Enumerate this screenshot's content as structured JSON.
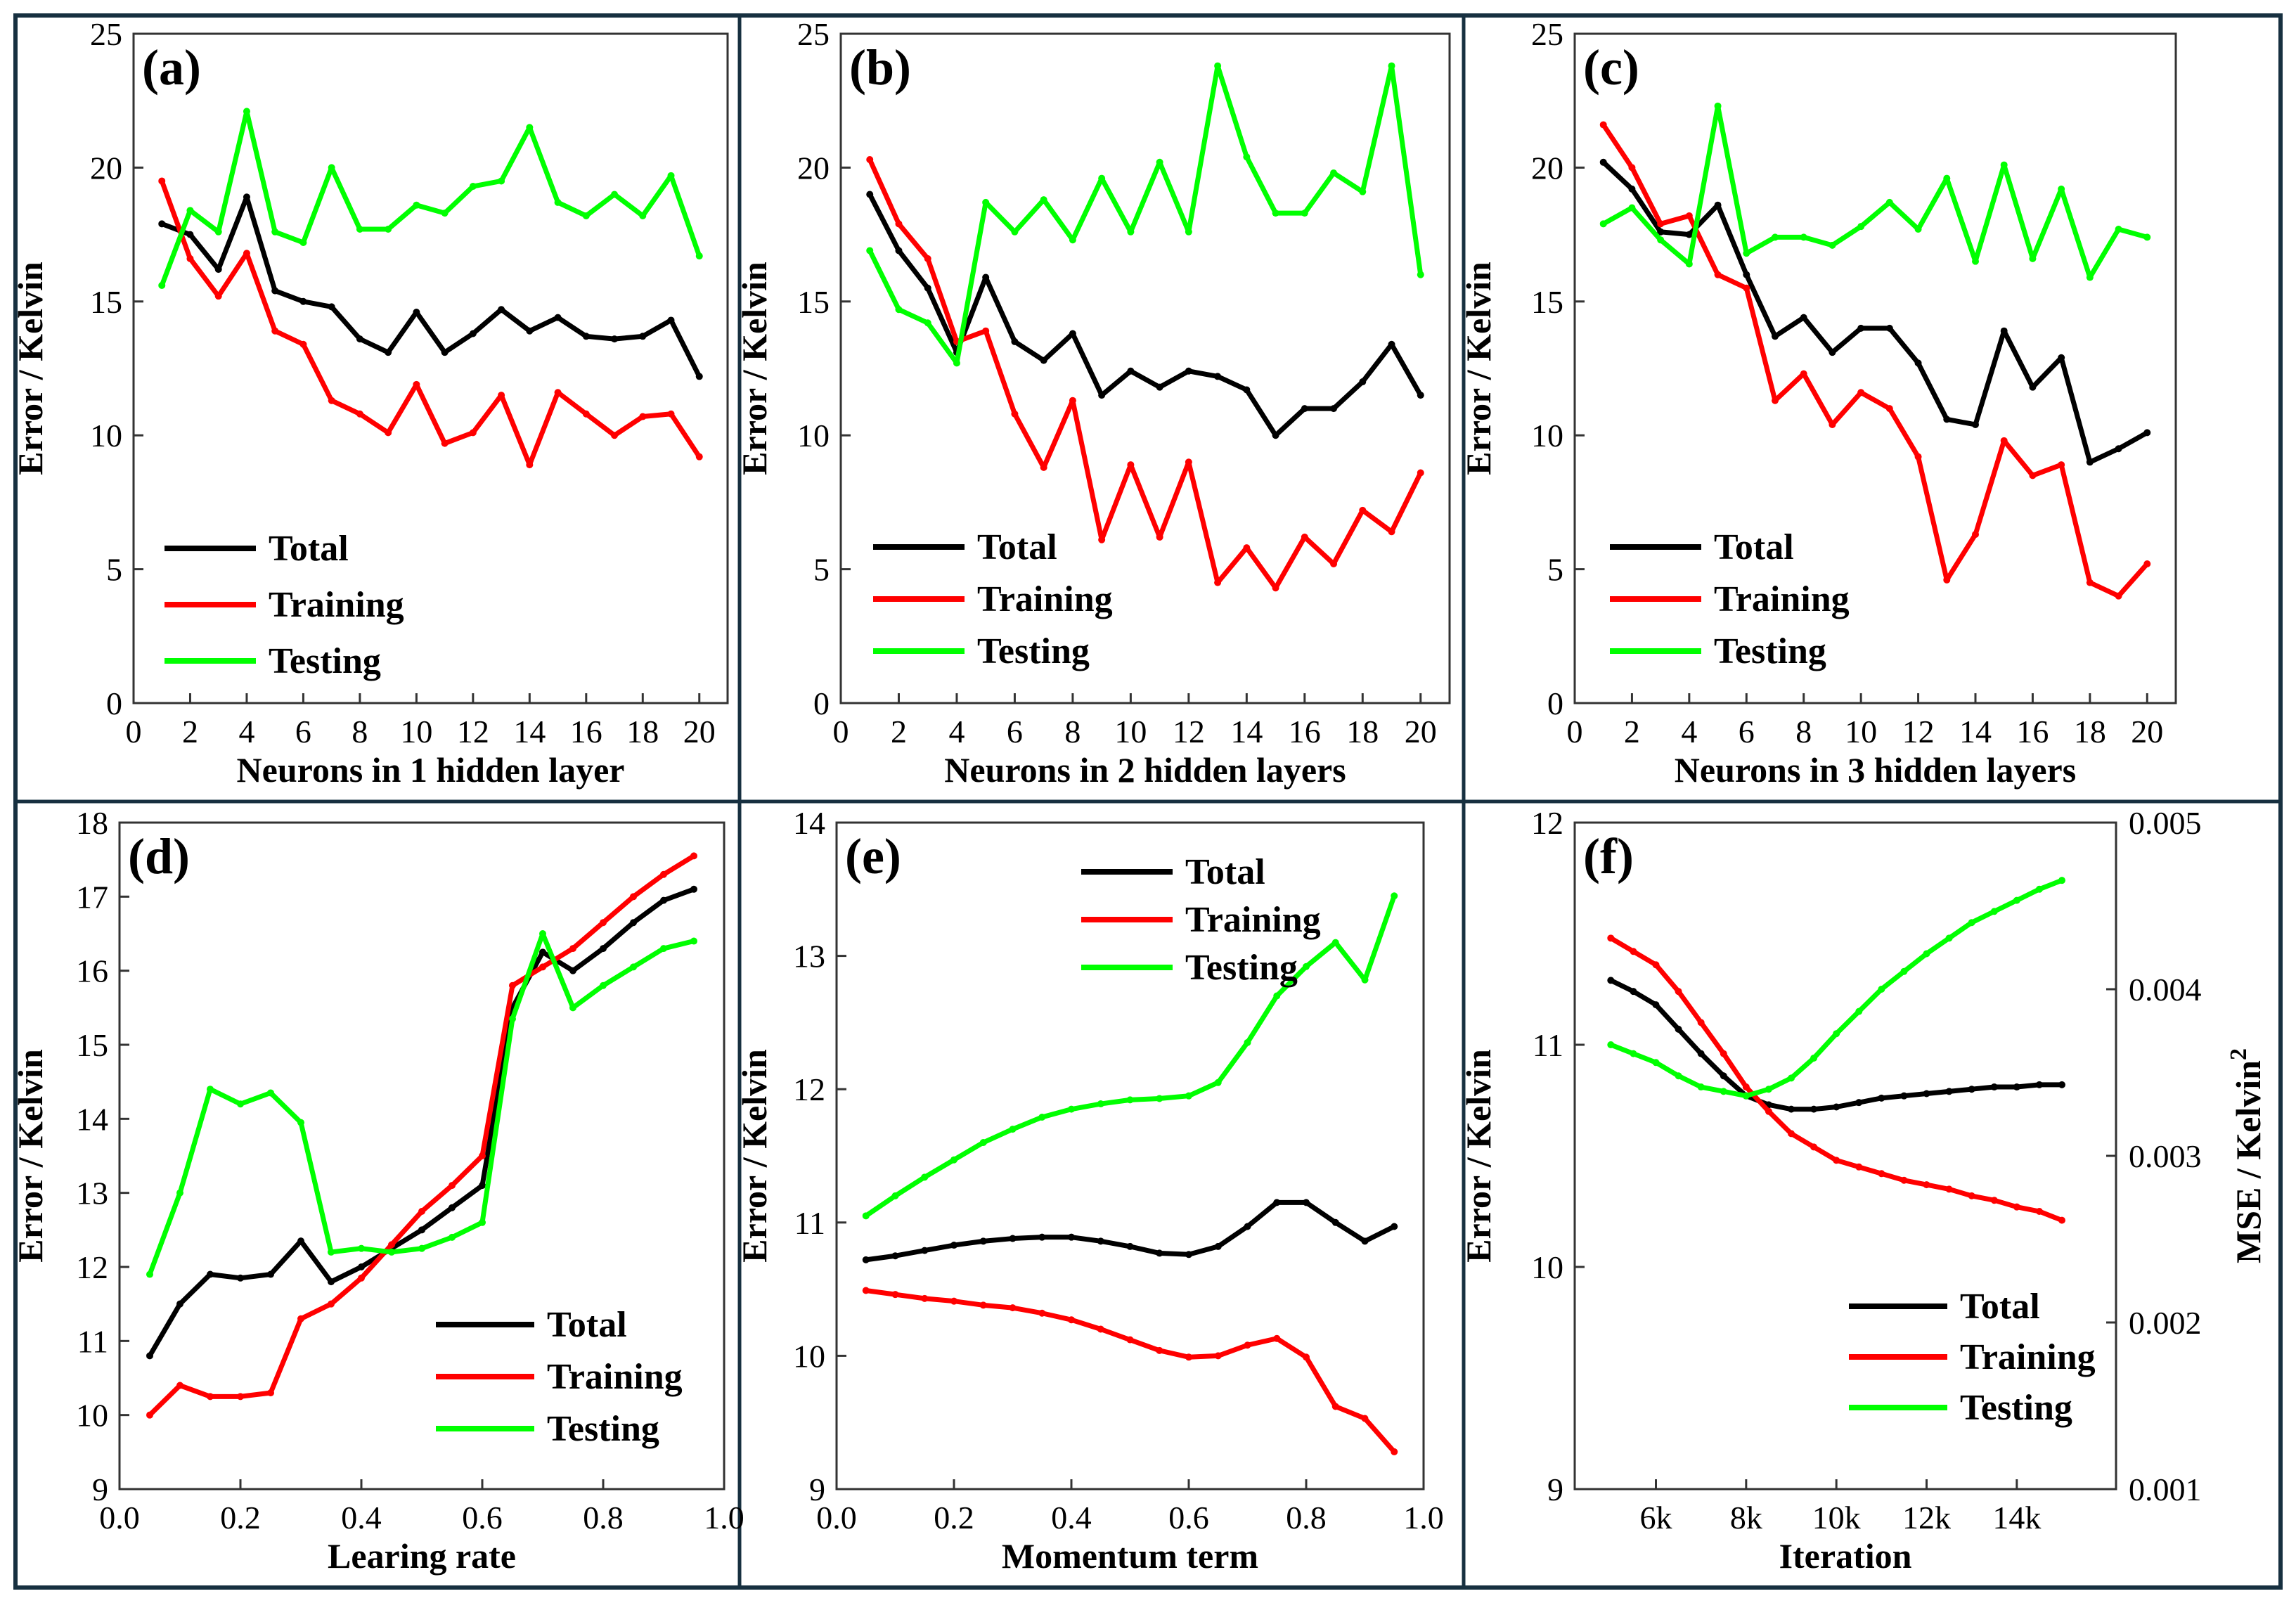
{
  "chart_data": [
    {
      "id": "a",
      "type": "line",
      "panel_label": "(a)",
      "xlabel": "Neurons in 1 hidden layer",
      "ylabel": "Error / Kelvin",
      "xlim": [
        0,
        21
      ],
      "ylim": [
        0,
        25
      ],
      "xticks": [
        0,
        2,
        4,
        6,
        8,
        10,
        12,
        14,
        16,
        18,
        20
      ],
      "xtick_labels": [
        "0",
        "2",
        "4",
        "6",
        "8",
        "10",
        "12",
        "14",
        "16",
        "18",
        "20"
      ],
      "yticks": [
        0,
        5,
        10,
        15,
        20,
        25
      ],
      "ytick_labels": [
        "0",
        "5",
        "10",
        "15",
        "20",
        "25"
      ],
      "legend_position": "bottom-left",
      "x": [
        1,
        2,
        3,
        4,
        5,
        6,
        7,
        8,
        9,
        10,
        11,
        12,
        13,
        14,
        15,
        16,
        17,
        18,
        19,
        20
      ],
      "series": [
        {
          "name": "Total",
          "color": "#000000",
          "values": [
            17.9,
            17.5,
            16.2,
            18.9,
            15.4,
            15.0,
            14.8,
            13.6,
            13.1,
            14.6,
            13.1,
            13.8,
            14.7,
            13.9,
            14.4,
            13.7,
            13.6,
            13.7,
            14.3,
            12.2
          ]
        },
        {
          "name": "Training",
          "color": "#ff0000",
          "values": [
            19.5,
            16.6,
            15.2,
            16.8,
            13.9,
            13.4,
            11.3,
            10.8,
            10.1,
            11.9,
            9.7,
            10.1,
            11.5,
            8.9,
            11.6,
            10.8,
            10.0,
            10.7,
            10.8,
            9.2
          ]
        },
        {
          "name": "Testing",
          "color": "#00ff00",
          "values": [
            15.6,
            18.4,
            17.6,
            22.1,
            17.6,
            17.2,
            20.0,
            17.7,
            17.7,
            18.6,
            18.3,
            19.3,
            19.5,
            21.5,
            18.7,
            18.2,
            19.0,
            18.2,
            19.7,
            16.7
          ]
        }
      ]
    },
    {
      "id": "b",
      "type": "line",
      "panel_label": "(b)",
      "xlabel": "Neurons in 2 hidden layers",
      "ylabel": "Error / Kelvin",
      "xlim": [
        0,
        21
      ],
      "ylim": [
        0,
        25
      ],
      "xticks": [
        0,
        2,
        4,
        6,
        8,
        10,
        12,
        14,
        16,
        18,
        20
      ],
      "xtick_labels": [
        "0",
        "2",
        "4",
        "6",
        "8",
        "10",
        "12",
        "14",
        "16",
        "18",
        "20"
      ],
      "yticks": [
        0,
        5,
        10,
        15,
        20,
        25
      ],
      "ytick_labels": [
        "0",
        "5",
        "10",
        "15",
        "20",
        "25"
      ],
      "legend_position": "bottom-left",
      "x": [
        1,
        2,
        3,
        4,
        5,
        6,
        7,
        8,
        9,
        10,
        11,
        12,
        13,
        14,
        15,
        16,
        17,
        18,
        19,
        20
      ],
      "series": [
        {
          "name": "Total",
          "color": "#000000",
          "values": [
            19.0,
            16.9,
            15.5,
            13.1,
            15.9,
            13.5,
            12.8,
            13.8,
            11.5,
            12.4,
            11.8,
            12.4,
            12.2,
            11.7,
            10.0,
            11.0,
            11.0,
            12.0,
            13.4,
            11.5
          ]
        },
        {
          "name": "Training",
          "color": "#ff0000",
          "values": [
            20.3,
            17.9,
            16.6,
            13.5,
            13.9,
            10.8,
            8.8,
            11.3,
            6.1,
            8.9,
            6.2,
            9.0,
            4.5,
            5.8,
            4.3,
            6.2,
            5.2,
            7.2,
            6.4,
            8.6
          ]
        },
        {
          "name": "Testing",
          "color": "#00ff00",
          "values": [
            16.9,
            14.7,
            14.2,
            12.7,
            18.7,
            17.6,
            18.8,
            17.3,
            19.6,
            17.6,
            20.2,
            17.6,
            23.8,
            20.4,
            18.3,
            18.3,
            19.8,
            19.1,
            23.8,
            16.0
          ]
        }
      ]
    },
    {
      "id": "c",
      "type": "line",
      "panel_label": "(c)",
      "xlabel": "Neurons in 3 hidden layers",
      "ylabel": "Error / Kelvin",
      "xlim": [
        0,
        21
      ],
      "ylim": [
        0,
        25
      ],
      "xticks": [
        0,
        2,
        4,
        6,
        8,
        10,
        12,
        14,
        16,
        18,
        20
      ],
      "xtick_labels": [
        "0",
        "2",
        "4",
        "6",
        "8",
        "10",
        "12",
        "14",
        "16",
        "18",
        "20"
      ],
      "yticks": [
        0,
        5,
        10,
        15,
        20,
        25
      ],
      "ytick_labels": [
        "0",
        "5",
        "10",
        "15",
        "20",
        "25"
      ],
      "legend_position": "bottom-left",
      "x": [
        1,
        2,
        3,
        4,
        5,
        6,
        7,
        8,
        9,
        10,
        11,
        12,
        13,
        14,
        15,
        16,
        17,
        18,
        19,
        20
      ],
      "series": [
        {
          "name": "Total",
          "color": "#000000",
          "values": [
            20.2,
            19.2,
            17.6,
            17.5,
            18.6,
            16.0,
            13.7,
            14.4,
            13.1,
            14.0,
            14.0,
            12.7,
            10.6,
            10.4,
            13.9,
            11.8,
            12.9,
            9.0,
            9.5,
            10.1
          ]
        },
        {
          "name": "Training",
          "color": "#ff0000",
          "values": [
            21.6,
            20.0,
            17.9,
            18.2,
            16.0,
            15.5,
            11.3,
            12.3,
            10.4,
            11.6,
            11.0,
            9.2,
            4.6,
            6.3,
            9.8,
            8.5,
            8.9,
            4.5,
            4.0,
            5.2
          ]
        },
        {
          "name": "Testing",
          "color": "#00ff00",
          "values": [
            17.9,
            18.5,
            17.3,
            16.4,
            22.3,
            16.8,
            17.4,
            17.4,
            17.1,
            17.8,
            18.7,
            17.7,
            19.6,
            16.5,
            20.1,
            16.6,
            19.2,
            15.9,
            17.7,
            17.4
          ]
        }
      ]
    },
    {
      "id": "d",
      "type": "line",
      "panel_label": "(d)",
      "xlabel": "Learing rate",
      "ylabel": "Error / Kelvin",
      "xlim": [
        0.0,
        1.0
      ],
      "ylim": [
        9,
        18
      ],
      "xticks": [
        0.0,
        0.2,
        0.4,
        0.6,
        0.8,
        1.0
      ],
      "xtick_labels": [
        "0.0",
        "0.2",
        "0.4",
        "0.6",
        "0.8",
        "1.0"
      ],
      "yticks": [
        9,
        10,
        11,
        12,
        13,
        14,
        15,
        16,
        17,
        18
      ],
      "ytick_labels": [
        "9",
        "10",
        "11",
        "12",
        "13",
        "14",
        "15",
        "16",
        "17",
        "18"
      ],
      "legend_position": "bottom-right",
      "x": [
        0.05,
        0.1,
        0.15,
        0.2,
        0.25,
        0.3,
        0.35,
        0.4,
        0.45,
        0.5,
        0.55,
        0.6,
        0.65,
        0.7,
        0.75,
        0.8,
        0.85,
        0.9,
        0.95
      ],
      "series": [
        {
          "name": "Total",
          "color": "#000000",
          "values": [
            10.8,
            11.5,
            11.9,
            11.85,
            11.9,
            12.35,
            11.8,
            12.0,
            12.25,
            12.5,
            12.8,
            13.1,
            15.5,
            16.25,
            16.0,
            16.3,
            16.65,
            16.95,
            17.1
          ]
        },
        {
          "name": "Training",
          "color": "#ff0000",
          "values": [
            10.0,
            10.4,
            10.25,
            10.25,
            10.3,
            11.3,
            11.5,
            11.85,
            12.3,
            12.75,
            13.1,
            13.5,
            15.8,
            16.05,
            16.3,
            16.65,
            17.0,
            17.3,
            17.55
          ]
        },
        {
          "name": "Testing",
          "color": "#00ff00",
          "values": [
            11.9,
            13.0,
            14.4,
            14.2,
            14.35,
            13.95,
            12.2,
            12.25,
            12.2,
            12.25,
            12.4,
            12.6,
            15.35,
            16.5,
            15.5,
            15.8,
            16.05,
            16.3,
            16.4
          ]
        }
      ]
    },
    {
      "id": "e",
      "type": "line",
      "panel_label": "(e)",
      "xlabel": "Momentum term",
      "ylabel": "Error / Kelvin",
      "xlim": [
        0.0,
        1.0
      ],
      "ylim": [
        9,
        14
      ],
      "xticks": [
        0.0,
        0.2,
        0.4,
        0.6,
        0.8,
        1.0
      ],
      "xtick_labels": [
        "0.0",
        "0.2",
        "0.4",
        "0.6",
        "0.8",
        "1.0"
      ],
      "yticks": [
        9,
        10,
        11,
        12,
        13,
        14
      ],
      "ytick_labels": [
        "9",
        "10",
        "11",
        "12",
        "13",
        "14"
      ],
      "legend_position": "top-center",
      "x": [
        0.05,
        0.1,
        0.15,
        0.2,
        0.25,
        0.3,
        0.35,
        0.4,
        0.45,
        0.5,
        0.55,
        0.6,
        0.65,
        0.7,
        0.75,
        0.8,
        0.85,
        0.9,
        0.95
      ],
      "series": [
        {
          "name": "Total",
          "color": "#000000",
          "values": [
            10.72,
            10.75,
            10.79,
            10.83,
            10.86,
            10.88,
            10.89,
            10.89,
            10.86,
            10.82,
            10.77,
            10.76,
            10.82,
            10.97,
            11.15,
            11.15,
            11.0,
            10.86,
            10.97
          ]
        },
        {
          "name": "Training",
          "color": "#ff0000",
          "values": [
            10.49,
            10.46,
            10.43,
            10.41,
            10.38,
            10.36,
            10.32,
            10.27,
            10.2,
            10.12,
            10.04,
            9.99,
            10.0,
            10.08,
            10.13,
            9.99,
            9.62,
            9.53,
            9.28
          ]
        },
        {
          "name": "Testing",
          "color": "#00ff00",
          "values": [
            11.05,
            11.2,
            11.34,
            11.47,
            11.6,
            11.7,
            11.79,
            11.85,
            11.89,
            11.92,
            11.93,
            11.95,
            12.05,
            12.35,
            12.7,
            12.92,
            13.1,
            12.82,
            13.45
          ]
        }
      ]
    },
    {
      "id": "f",
      "type": "line",
      "panel_label": "(f)",
      "xlabel": "Iteration",
      "ylabel": "Error / Kelvin",
      "ylabel_right": "MSE / Kelvin",
      "ylabel_right_superscript": "2",
      "xlim": [
        4200,
        16200
      ],
      "ylim": [
        9,
        12
      ],
      "ylim_right": [
        0.001,
        0.005
      ],
      "xticks": [
        6000,
        8000,
        10000,
        12000,
        14000
      ],
      "xtick_labels": [
        "6k",
        "8k",
        "10k",
        "12k",
        "14k"
      ],
      "yticks": [
        9,
        10,
        11,
        12
      ],
      "ytick_labels": [
        "9",
        "10",
        "11",
        "12"
      ],
      "yticks_right": [
        0.001,
        0.002,
        0.003,
        0.004,
        0.005
      ],
      "ytick_labels_right": [
        "0.001",
        "0.002",
        "0.003",
        "0.004",
        "0.005"
      ],
      "legend_position": "bottom-right",
      "x": [
        5000,
        5500,
        6000,
        6500,
        7000,
        7500,
        8000,
        8500,
        9000,
        9500,
        10000,
        10500,
        11000,
        11500,
        12000,
        12500,
        13000,
        13500,
        14000,
        14500,
        15000
      ],
      "series": [
        {
          "name": "Total",
          "color": "#000000",
          "values": [
            11.29,
            11.24,
            11.18,
            11.07,
            10.96,
            10.86,
            10.77,
            10.73,
            10.71,
            10.71,
            10.72,
            10.74,
            10.76,
            10.77,
            10.78,
            10.79,
            10.8,
            10.81,
            10.81,
            10.82,
            10.82
          ]
        },
        {
          "name": "Training",
          "color": "#ff0000",
          "values": [
            11.48,
            11.42,
            11.36,
            11.24,
            11.1,
            10.96,
            10.81,
            10.7,
            10.6,
            10.54,
            10.48,
            10.45,
            10.42,
            10.39,
            10.37,
            10.35,
            10.32,
            10.3,
            10.27,
            10.25,
            10.21
          ]
        },
        {
          "name": "Testing",
          "color": "#00ff00",
          "values": [
            11.0,
            10.96,
            10.92,
            10.86,
            10.81,
            10.79,
            10.77,
            10.8,
            10.85,
            10.94,
            11.05,
            11.15,
            11.25,
            11.33,
            11.41,
            11.48,
            11.55,
            11.6,
            11.65,
            11.7,
            11.74
          ]
        }
      ]
    }
  ]
}
